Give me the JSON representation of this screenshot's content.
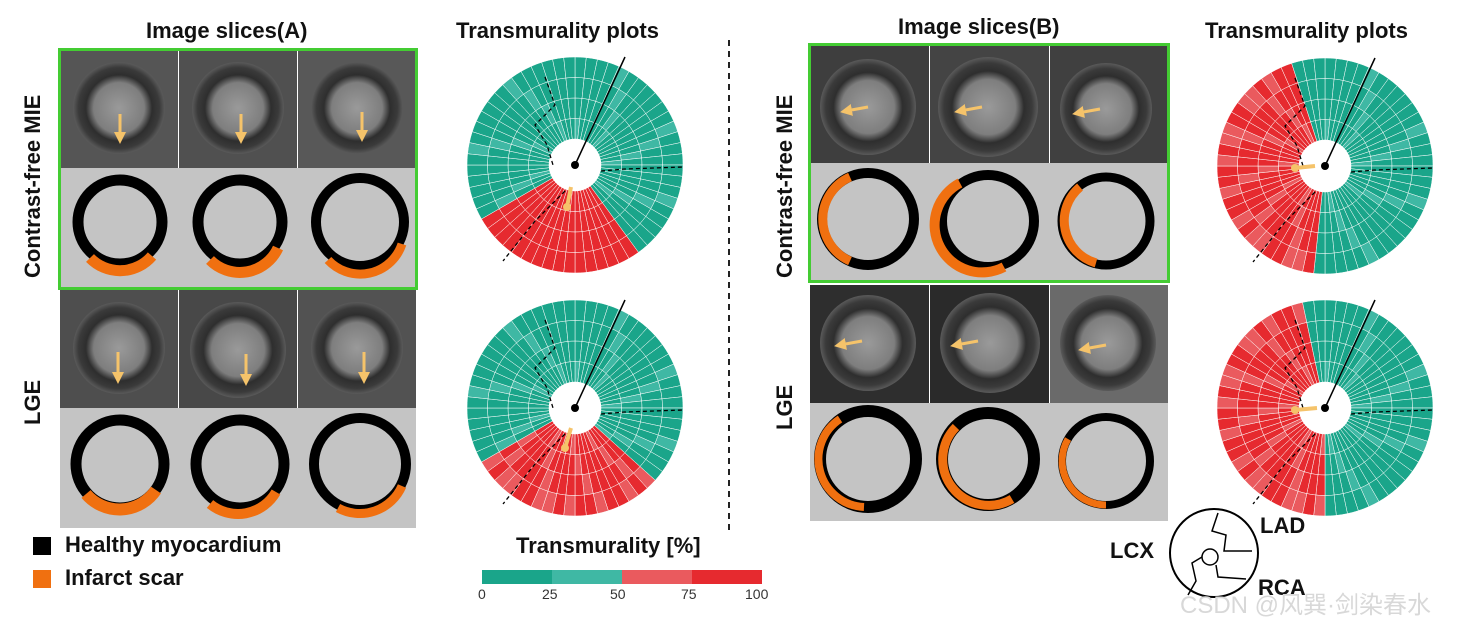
{
  "titles": {
    "slices_a": "Image slices(A)",
    "plots_a": "Transmurality plots",
    "slices_b": "Image slices(B)",
    "plots_b": "Transmurality plots"
  },
  "row_labels": {
    "a_top": "Contrast-free MIE",
    "a_bottom": "LGE",
    "b_top": "Contrast-free MIE",
    "b_bottom": "LGE"
  },
  "legend": {
    "healthy": "Healthy myocardium",
    "scar": "Infarct scar",
    "healthy_color": "#000000",
    "scar_color": "#f07010"
  },
  "colorbar": {
    "title": "Transmurality [%]",
    "ticks": [
      "0",
      "25",
      "50",
      "75",
      "100"
    ],
    "colors": [
      "#1aa58a",
      "#3fb8a4",
      "#ea5a5e",
      "#e62a2f"
    ]
  },
  "territory_labels": {
    "lad": "LAD",
    "lcx": "LCX",
    "rca": "RCA"
  },
  "watermark": "CSDN @风巽·剑染春水",
  "icons": [
    "arrow-icon"
  ]
}
